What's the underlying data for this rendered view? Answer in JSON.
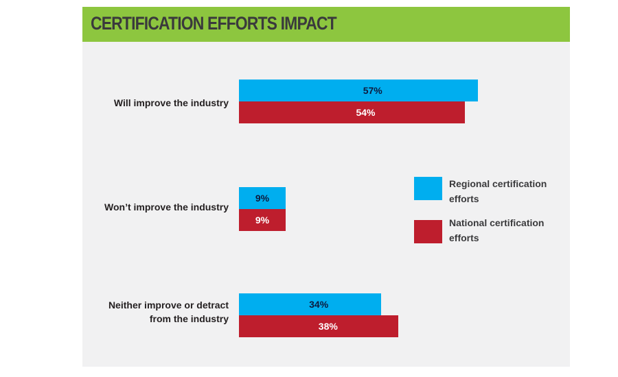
{
  "chart_data": {
    "type": "bar",
    "orientation": "horizontal",
    "title": "CERTIFICATION EFFORTS IMPACT",
    "categories": [
      "Will improve the industry",
      "Won’t improve the industry",
      "Neither improve or detract from the industry"
    ],
    "series": [
      {
        "name": "Regional certification efforts",
        "color": "#00aeef",
        "label_color": "#0d1b3e",
        "values": [
          57,
          9,
          34
        ],
        "labels": [
          "57%",
          "9%",
          "34%"
        ]
      },
      {
        "name": "National certification efforts",
        "color": "#be1e2d",
        "label_color": "#ffffff",
        "values": [
          54,
          9,
          38
        ],
        "labels": [
          "54%",
          "9%",
          "38%"
        ]
      }
    ],
    "unit": "%",
    "legend_position": "right",
    "grid": false,
    "header_color": "#8dc63f",
    "background_color": "#f1f1f2"
  }
}
